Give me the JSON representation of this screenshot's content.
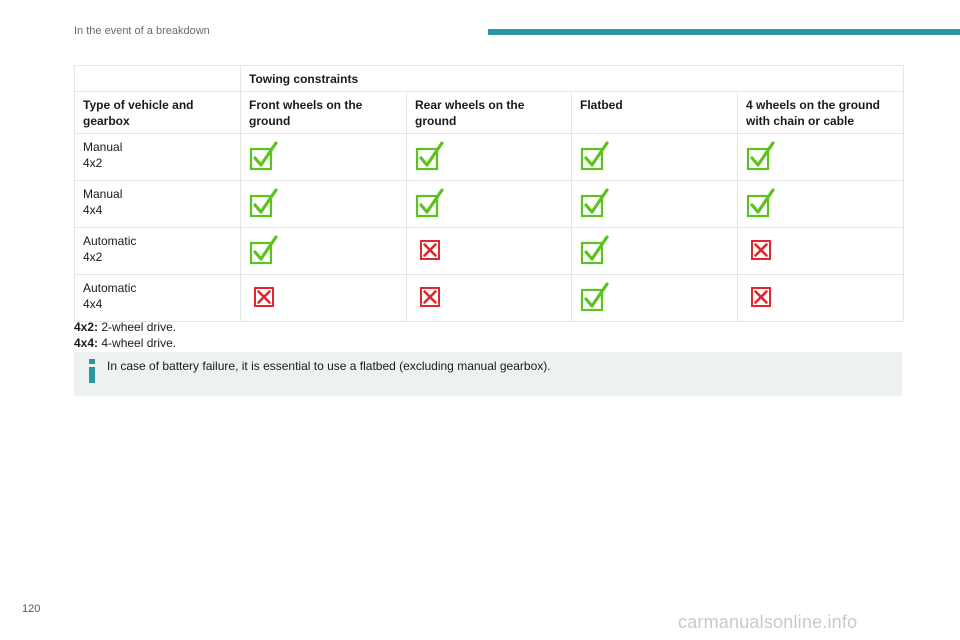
{
  "header": {
    "section_title": "In the event of a breakdown",
    "accent_color": "#2a97a3"
  },
  "table": {
    "group_header": "Towing constraints",
    "columns": [
      "Type of vehicle and gearbox",
      "Front wheels on the ground",
      "Rear wheels on the ground",
      "Flatbed",
      "4 wheels on the ground with chain or cable"
    ],
    "rows": [
      {
        "gearbox": "Manual",
        "drive": "4x2",
        "values": [
          "allowed",
          "allowed",
          "allowed",
          "allowed"
        ]
      },
      {
        "gearbox": "Manual",
        "drive": "4x4",
        "values": [
          "allowed",
          "allowed",
          "allowed",
          "allowed"
        ]
      },
      {
        "gearbox": "Automatic",
        "drive": "4x2",
        "values": [
          "allowed",
          "not-allowed",
          "allowed",
          "not-allowed"
        ]
      },
      {
        "gearbox": "Automatic",
        "drive": "4x4",
        "values": [
          "not-allowed",
          "not-allowed",
          "allowed",
          "not-allowed"
        ]
      }
    ],
    "icons": {
      "allowed": "green-check-icon",
      "not-allowed": "red-cross-icon"
    },
    "colors": {
      "check": "#5dc21e",
      "cross": "#e0262e"
    }
  },
  "notes": [
    {
      "term": "4x2:",
      "definition": "2-wheel drive."
    },
    {
      "term": "4x4:",
      "definition": "4-wheel drive."
    }
  ],
  "info": {
    "icon": "info-icon",
    "text": "In case of battery failure, it is essential to use a flatbed (excluding manual gearbox)."
  },
  "page_number": "120",
  "watermark": "carmanualsonline.info"
}
